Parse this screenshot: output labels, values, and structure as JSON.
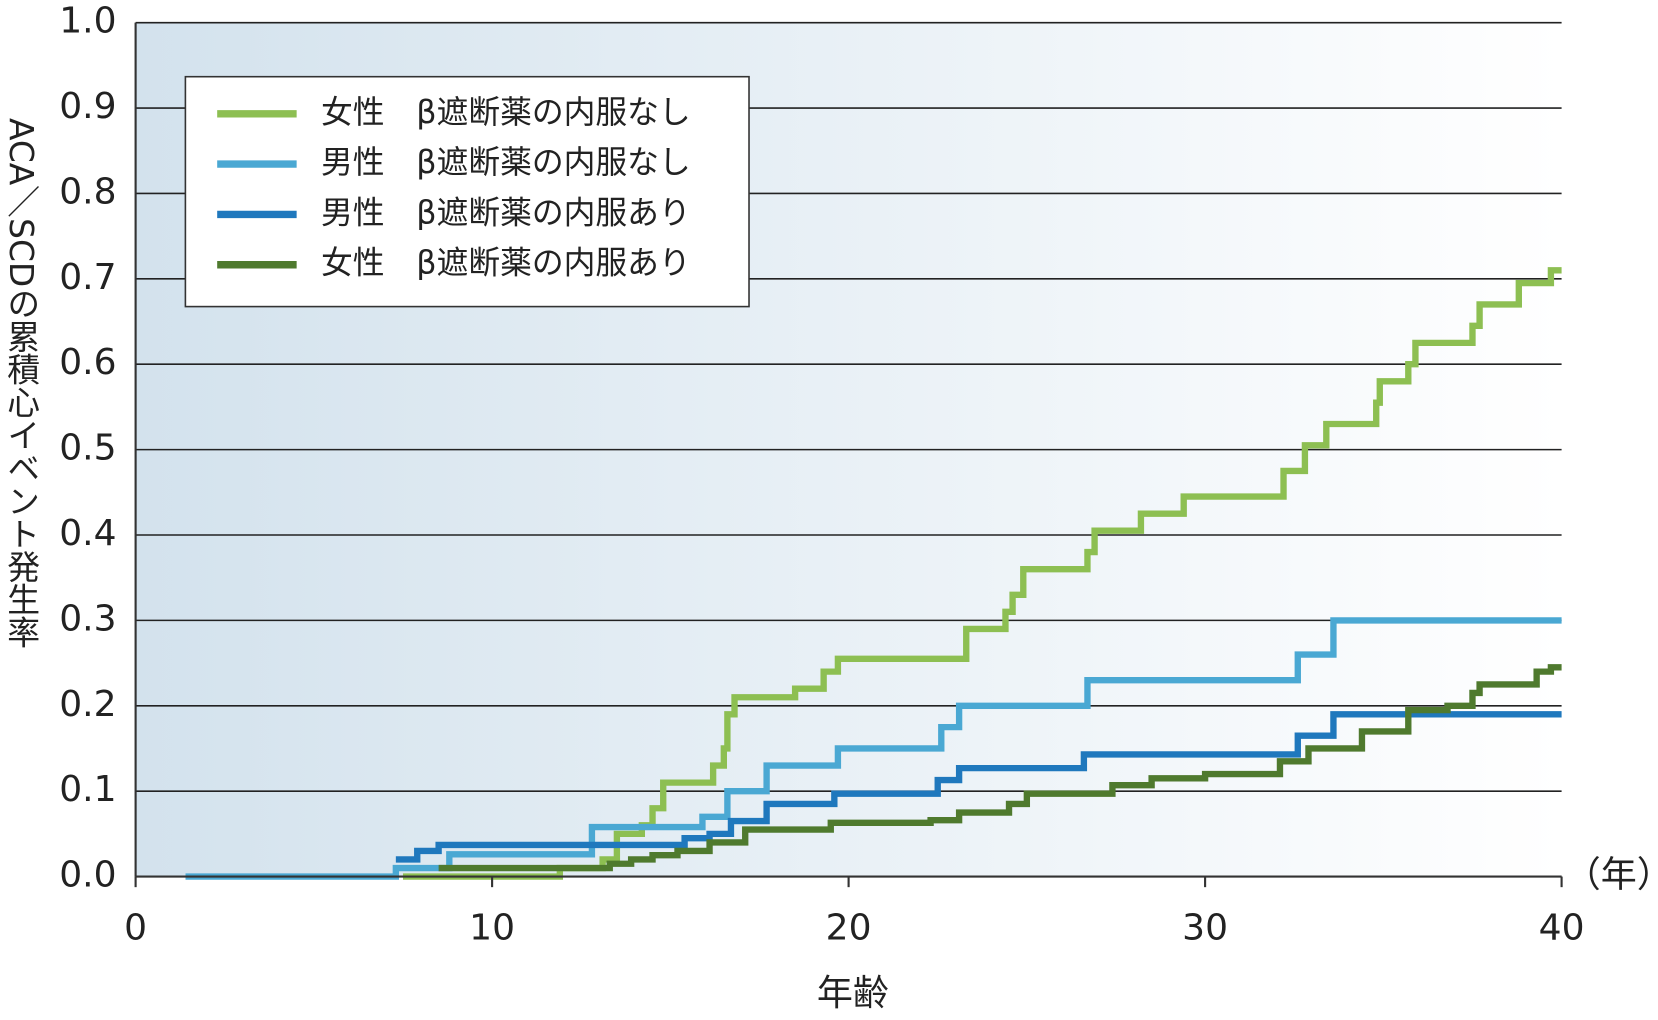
{
  "chart_data": {
    "type": "step",
    "xlabel": "年齢",
    "ylabel": "ACA／SCDの累積心イベント発生率",
    "x_unit": "（年）",
    "xlim": [
      0,
      40
    ],
    "ylim": [
      0,
      1
    ],
    "xticks": [
      0,
      10,
      20,
      30,
      40
    ],
    "yticks": [
      {
        "value": 0,
        "label": "0.0"
      },
      0.1,
      0.2,
      0.3,
      0.4,
      0.5,
      0.6,
      0.7,
      0.8,
      0.9,
      {
        "value": 1,
        "label": "1.0"
      }
    ],
    "grid": true,
    "legend": "upper left",
    "series": [
      {
        "name": "女性　β遮断薬の内服なし",
        "color": "#8dbf52",
        "x": [
          7.5,
          11.9,
          13.1,
          13.5,
          14.2,
          14.5,
          14.8,
          16.2,
          16.5,
          16.6,
          16.8,
          18.5,
          19.3,
          19.7,
          23.3,
          24.4,
          24.6,
          24.9,
          26.7,
          26.9,
          28.2,
          29.4,
          32.2,
          32.8,
          33.4,
          34.8,
          34.9,
          35.7,
          35.9,
          37.5,
          37.7,
          38.8,
          39.7,
          40
        ],
        "values": [
          0,
          0.01,
          0.02,
          0.05,
          0.06,
          0.08,
          0.11,
          0.13,
          0.15,
          0.19,
          0.21,
          0.22,
          0.24,
          0.255,
          0.29,
          0.31,
          0.33,
          0.36,
          0.38,
          0.405,
          0.425,
          0.445,
          0.475,
          0.505,
          0.53,
          0.555,
          0.58,
          0.6,
          0.625,
          0.645,
          0.67,
          0.695,
          0.71,
          0.71
        ]
      },
      {
        "name": "男性　β遮断薬の内服なし",
        "color": "#4aa8d3",
        "x": [
          1.4,
          7.3,
          8.8,
          12.8,
          15.9,
          16.6,
          17.7,
          19.7,
          22.6,
          23.1,
          26.7,
          32.6,
          33.6,
          40
        ],
        "values": [
          0,
          0.01,
          0.026,
          0.058,
          0.07,
          0.1,
          0.13,
          0.15,
          0.175,
          0.2,
          0.23,
          0.26,
          0.3,
          0.3
        ]
      },
      {
        "name": "男性　β遮断薬の内服あり",
        "color": "#1f78bd",
        "x": [
          7.3,
          7.9,
          8.5,
          15.4,
          16.1,
          16.7,
          17.7,
          19.6,
          22.5,
          23.1,
          26.6,
          32.6,
          33.6,
          40
        ],
        "values": [
          0.02,
          0.03,
          0.037,
          0.045,
          0.05,
          0.065,
          0.085,
          0.097,
          0.113,
          0.127,
          0.143,
          0.165,
          0.19,
          0.19
        ]
      },
      {
        "name": "女性　β遮断薬の内服あり",
        "color": "#4f7a2e",
        "x": [
          8.5,
          11.9,
          13.3,
          13.9,
          14.5,
          15.2,
          16.1,
          17.1,
          19.5,
          22.3,
          23.1,
          24.5,
          25.0,
          27.4,
          28.5,
          30.0,
          32.1,
          32.9,
          34.4,
          35.7,
          36.8,
          37.5,
          37.7,
          39.3,
          39.7,
          40
        ],
        "values": [
          0.01,
          0.01,
          0.015,
          0.02,
          0.025,
          0.03,
          0.04,
          0.055,
          0.063,
          0.066,
          0.075,
          0.085,
          0.097,
          0.107,
          0.115,
          0.12,
          0.135,
          0.15,
          0.17,
          0.195,
          0.2,
          0.215,
          0.225,
          0.24,
          0.245,
          0.245
        ]
      }
    ]
  }
}
